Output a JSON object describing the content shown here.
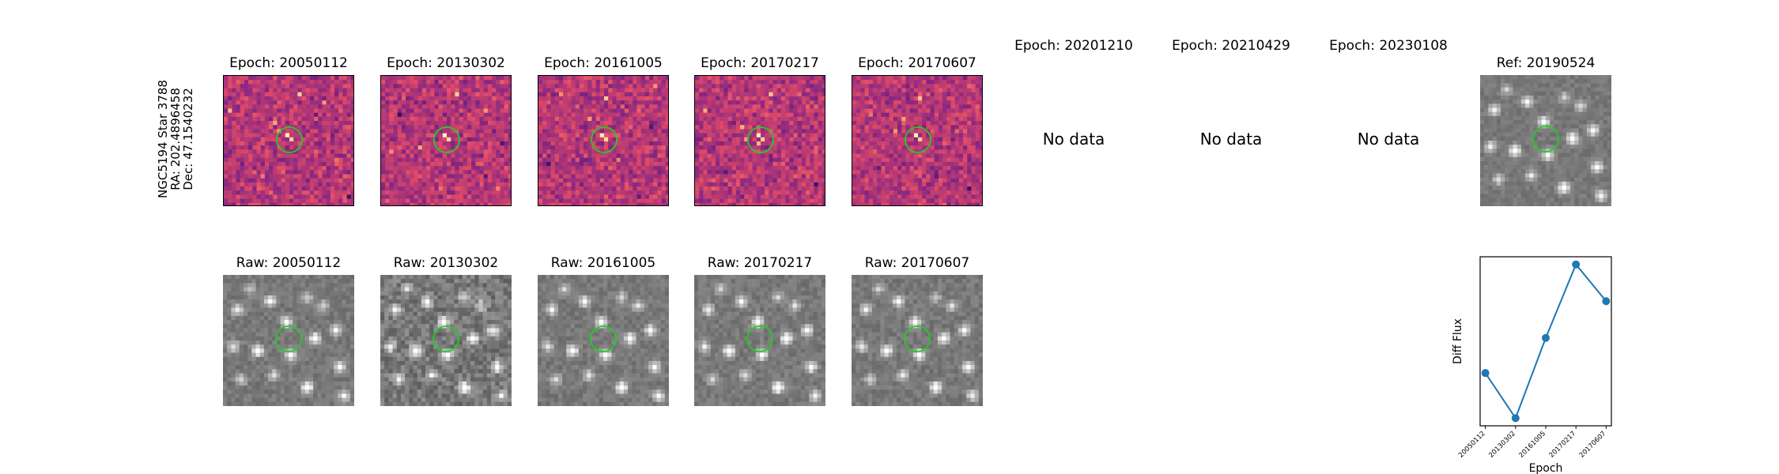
{
  "target": {
    "name": "NGC5194 Star 3788",
    "ra": "RA: 202.4896458",
    "dec": "Dec: 47.1540232"
  },
  "diff_panels": [
    {
      "title": "Epoch: 20050112",
      "has_data": true
    },
    {
      "title": "Epoch: 20130302",
      "has_data": true
    },
    {
      "title": "Epoch: 20161005",
      "has_data": true
    },
    {
      "title": "Epoch: 20170217",
      "has_data": true
    },
    {
      "title": "Epoch: 20170607",
      "has_data": true
    },
    {
      "title": "Epoch: 20201210",
      "has_data": false,
      "message": "No data"
    },
    {
      "title": "Epoch: 20210429",
      "has_data": false,
      "message": "No data"
    },
    {
      "title": "Epoch: 20230108",
      "has_data": false,
      "message": "No data"
    }
  ],
  "reference": {
    "title": "Ref: 20190524"
  },
  "raw_panels": [
    {
      "title": "Raw: 20050112"
    },
    {
      "title": "Raw: 20130302"
    },
    {
      "title": "Raw: 20161005"
    },
    {
      "title": "Raw: 20170217"
    },
    {
      "title": "Raw: 20170607"
    }
  ],
  "colors": {
    "circle": "#22cc22",
    "line": "#1f77b4"
  },
  "chart_data": {
    "type": "line",
    "categories": [
      "20050112",
      "20130302",
      "20161005",
      "20170217",
      "20170607"
    ],
    "values": [
      0.35,
      0.08,
      0.56,
      1.0,
      0.78
    ],
    "xlabel": "Epoch",
    "ylabel": "Diff Flux",
    "yticks_shown": false,
    "grid": false
  }
}
